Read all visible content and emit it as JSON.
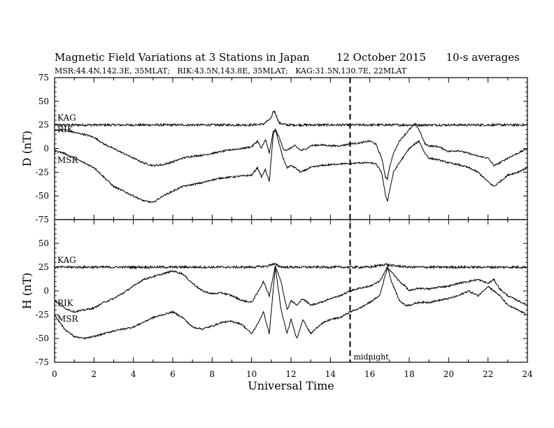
{
  "header": {
    "title": "Magnetic Field Variations at 3 Stations in Japan",
    "date": "12 October 2015",
    "resolution": "10-s averages",
    "stations": "MSR:44.4N,142.3E, 35MLAT;   RIK:43.5N,143.8E, 35MLAT;   KAG:31.5N,130.7E, 22MLAT"
  },
  "chart_data": [
    {
      "type": "line",
      "ylabel": "D (nT)",
      "xlim": [
        0,
        24
      ],
      "ylim": [
        -75,
        75
      ],
      "yticks": [
        75,
        50,
        25,
        0,
        -25,
        -50,
        -75
      ],
      "series": [
        {
          "name": "KAG",
          "x": [
            0,
            2,
            4,
            6,
            8,
            10,
            10.6,
            11,
            11.1,
            11.2,
            11.4,
            11.8,
            12,
            14,
            16,
            18,
            20,
            22,
            24
          ],
          "values": [
            25,
            25,
            25,
            25,
            25,
            25,
            26,
            32,
            40,
            38,
            27,
            25,
            25,
            25,
            25,
            25,
            25,
            25,
            25
          ]
        },
        {
          "name": "RIK",
          "x": [
            0,
            0.5,
            1,
            1.5,
            2,
            2.5,
            3,
            3.5,
            4,
            4.5,
            5,
            5.5,
            6,
            6.5,
            7,
            7.5,
            8,
            8.5,
            9,
            9.5,
            10,
            10.3,
            10.5,
            10.7,
            10.9,
            11.1,
            11.2,
            11.4,
            11.6,
            11.8,
            12,
            12.2,
            12.5,
            12.8,
            13,
            13.5,
            14,
            14.5,
            15,
            15.5,
            16,
            16.3,
            16.6,
            16.8,
            16.9,
            17,
            17.2,
            17.5,
            18,
            18.3,
            18.5,
            18.8,
            19,
            19.5,
            20,
            20.5,
            21,
            21.5,
            22,
            22.3,
            22.6,
            23,
            23.5,
            24
          ],
          "values": [
            19,
            20,
            17,
            15,
            12,
            5,
            0,
            -5,
            -10,
            -15,
            -18,
            -17,
            -14,
            -10,
            -8,
            -7,
            -5,
            -3,
            -1,
            0,
            2,
            8,
            0,
            10,
            -5,
            18,
            20,
            12,
            0,
            -2,
            1,
            3,
            -2,
            0,
            3,
            4,
            3,
            3,
            5,
            6,
            8,
            5,
            -10,
            -30,
            -32,
            -20,
            -5,
            8,
            20,
            26,
            20,
            5,
            3,
            2,
            -3,
            -2,
            -5,
            -8,
            -10,
            -18,
            -15,
            -10,
            -5,
            0
          ]
        },
        {
          "name": "MSR",
          "x": [
            0,
            0.5,
            1,
            1.5,
            2,
            2.5,
            3,
            3.5,
            4,
            4.5,
            5,
            5.5,
            6,
            6.5,
            7,
            7.5,
            8,
            8.5,
            9,
            9.5,
            10,
            10.3,
            10.5,
            10.7,
            10.9,
            11.1,
            11.2,
            11.4,
            11.6,
            11.8,
            12,
            12.2,
            12.5,
            12.8,
            13,
            13.5,
            14,
            14.5,
            15,
            15.5,
            16,
            16.3,
            16.6,
            16.8,
            16.9,
            17,
            17.2,
            17.5,
            18,
            18.3,
            18.5,
            18.8,
            19,
            19.5,
            20,
            20.5,
            21,
            21.5,
            22,
            22.3,
            22.6,
            23,
            23.5,
            24
          ],
          "values": [
            -2,
            -5,
            -10,
            -15,
            -20,
            -30,
            -40,
            -45,
            -50,
            -55,
            -57,
            -50,
            -45,
            -40,
            -38,
            -36,
            -33,
            -31,
            -30,
            -29,
            -28,
            -20,
            -30,
            -22,
            -35,
            15,
            20,
            5,
            -10,
            -20,
            -18,
            -20,
            -25,
            -22,
            -20,
            -18,
            -17,
            -16,
            -16,
            -15,
            -15,
            -16,
            -25,
            -50,
            -55,
            -45,
            -25,
            -15,
            0,
            5,
            8,
            -5,
            -10,
            -12,
            -15,
            -17,
            -20,
            -25,
            -35,
            -40,
            -35,
            -28,
            -25,
            -20
          ]
        }
      ]
    },
    {
      "type": "line",
      "ylabel": "H (nT)",
      "xlabel": "Universal Time",
      "xlim": [
        0,
        24
      ],
      "ylim": [
        -75,
        75
      ],
      "xticks": [
        0,
        2,
        4,
        6,
        8,
        10,
        12,
        14,
        16,
        18,
        20,
        22,
        24
      ],
      "yticks": [
        75,
        50,
        25,
        0,
        -25,
        -50,
        -75
      ],
      "annotation": "midnight",
      "marker_x": 15,
      "series": [
        {
          "name": "KAG",
          "x": [
            0,
            2,
            4,
            6,
            8,
            10,
            10.8,
            11,
            11.2,
            11.4,
            11.6,
            12,
            14,
            16,
            16.8,
            17,
            18,
            20,
            22,
            24
          ],
          "values": [
            25,
            25,
            25,
            25,
            25,
            25,
            26,
            28,
            28,
            26,
            25,
            25,
            25,
            25,
            28,
            27,
            25,
            25,
            25,
            25
          ]
        },
        {
          "name": "RIK",
          "x": [
            0,
            0.5,
            1,
            1.5,
            2,
            2.5,
            3,
            3.5,
            4,
            4.5,
            5,
            5.5,
            6,
            6.5,
            7,
            7.5,
            8,
            8.5,
            9,
            9.5,
            10,
            10.3,
            10.6,
            10.9,
            11.2,
            11.5,
            11.8,
            12,
            12.3,
            12.6,
            13,
            13.5,
            14,
            14.5,
            15,
            15.5,
            16,
            16.5,
            16.9,
            17.1,
            17.5,
            17.8,
            18,
            18.5,
            19,
            19.5,
            20,
            20.5,
            21,
            21.5,
            22,
            22.3,
            22.6,
            23,
            23.5,
            24
          ],
          "values": [
            -10,
            -18,
            -22,
            -20,
            -18,
            -12,
            -8,
            -2,
            5,
            12,
            15,
            18,
            21,
            18,
            8,
            0,
            -3,
            -2,
            -5,
            -10,
            -12,
            -2,
            10,
            -5,
            26,
            10,
            -20,
            -10,
            -15,
            -8,
            -15,
            -12,
            -8,
            -5,
            0,
            3,
            5,
            10,
            25,
            20,
            10,
            5,
            0,
            3,
            2,
            4,
            5,
            8,
            10,
            12,
            8,
            12,
            2,
            -5,
            -10,
            -15
          ]
        },
        {
          "name": "MSR",
          "x": [
            0,
            0.5,
            1,
            1.5,
            2,
            2.5,
            3,
            3.5,
            4,
            4.5,
            5,
            5.5,
            6,
            6.5,
            7,
            7.5,
            8,
            8.5,
            9,
            9.5,
            10,
            10.3,
            10.6,
            10.9,
            11.2,
            11.5,
            11.8,
            12,
            12.3,
            12.6,
            13,
            13.5,
            14,
            14.5,
            15,
            15.5,
            16,
            16.5,
            16.9,
            17.1,
            17.5,
            17.8,
            18,
            18.5,
            19,
            19.5,
            20,
            20.5,
            21,
            21.5,
            22,
            22.3,
            22.6,
            23,
            23.5,
            24
          ],
          "values": [
            -25,
            -40,
            -48,
            -50,
            -48,
            -45,
            -42,
            -40,
            -38,
            -33,
            -28,
            -25,
            -22,
            -28,
            -38,
            -40,
            -37,
            -33,
            -32,
            -35,
            -45,
            -35,
            -22,
            -45,
            25,
            -20,
            -45,
            -30,
            -50,
            -30,
            -45,
            -35,
            -30,
            -28,
            -22,
            -18,
            -12,
            -5,
            25,
            10,
            -10,
            -15,
            -15,
            -12,
            -12,
            -10,
            -8,
            -5,
            0,
            -5,
            5,
            0,
            -5,
            -15,
            -20,
            -25
          ]
        }
      ]
    }
  ]
}
